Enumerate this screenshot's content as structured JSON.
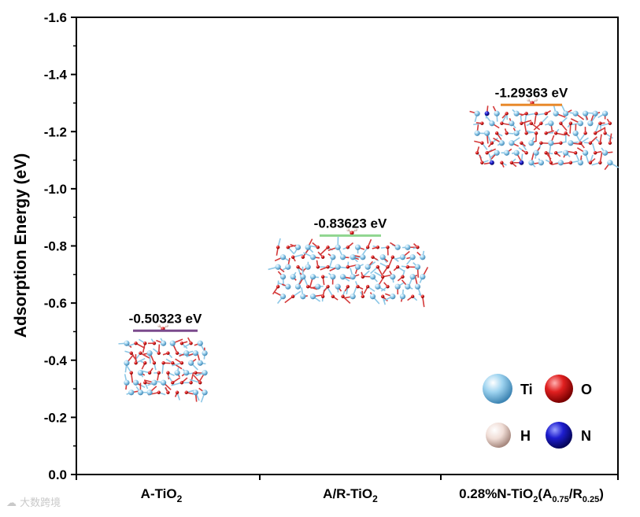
{
  "chart_data": {
    "type": "scatter",
    "title": "",
    "xlabel": "",
    "ylabel": "Adsorption Energy (eV)",
    "ylim": [
      0.0,
      -1.6
    ],
    "yticks": [
      "0.0",
      "-0.2",
      "-0.4",
      "-0.6",
      "-0.8",
      "-1.0",
      "-1.2",
      "-1.4",
      "-1.6"
    ],
    "ytick_values": [
      0.0,
      -0.2,
      -0.4,
      -0.6,
      -0.8,
      -1.0,
      -1.2,
      -1.4,
      -1.6
    ],
    "categories": [
      {
        "main": "A-TiO",
        "sub": "2",
        "rest": ""
      },
      {
        "main": "A/R-TiO",
        "sub": "2",
        "rest": ""
      },
      {
        "main": "0.28%N-TiO",
        "sub": "2",
        "rest": "(A",
        "sub2": "0.75",
        "mid": "/R",
        "sub3": "0.25",
        "end": ")"
      }
    ],
    "values": [
      -0.50323,
      -0.83623,
      -1.29363
    ],
    "labels": [
      "-0.50323 eV",
      "-0.83623 eV",
      "-1.29363 eV"
    ],
    "level_colors": [
      "#7a4a8c",
      "#8fd68f",
      "#e8892b"
    ]
  },
  "legend": {
    "items": [
      {
        "label": "Ti",
        "color": "#7ec3e8"
      },
      {
        "label": "O",
        "color": "#dd1f1f"
      },
      {
        "label": "H",
        "color": "#ead3cc"
      },
      {
        "label": "N",
        "color": "#1c1ccc"
      }
    ]
  },
  "watermark": "大数跨境"
}
